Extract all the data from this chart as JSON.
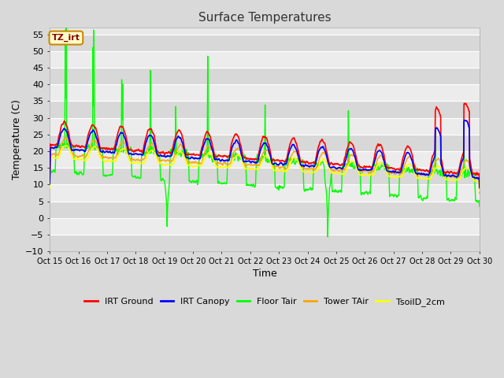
{
  "title": "Surface Temperatures",
  "xlabel": "Time",
  "ylabel": "Temperature (C)",
  "ylim": [
    -10,
    57
  ],
  "yticks": [
    -10,
    -5,
    0,
    5,
    10,
    15,
    20,
    25,
    30,
    35,
    40,
    45,
    50,
    55
  ],
  "xtick_labels": [
    "Oct 15",
    "Oct 16",
    "Oct 17",
    "Oct 18",
    "Oct 19",
    "Oct 20",
    "Oct 21",
    "Oct 22",
    "Oct 23",
    "Oct 24",
    "Oct 25",
    "Oct 26",
    "Oct 27",
    "Oct 28",
    "Oct 29",
    "Oct 30"
  ],
  "annotation_text": "TZ_irt",
  "legend_entries": [
    "IRT Ground",
    "IRT Canopy",
    "Floor Tair",
    "Tower TAir",
    "TsoilD_2cm"
  ],
  "line_colors": [
    "red",
    "blue",
    "#00ff00",
    "orange",
    "yellow"
  ],
  "figsize": [
    6.4,
    4.8
  ],
  "dpi": 100,
  "n_days": 15,
  "pts_per_day": 96
}
